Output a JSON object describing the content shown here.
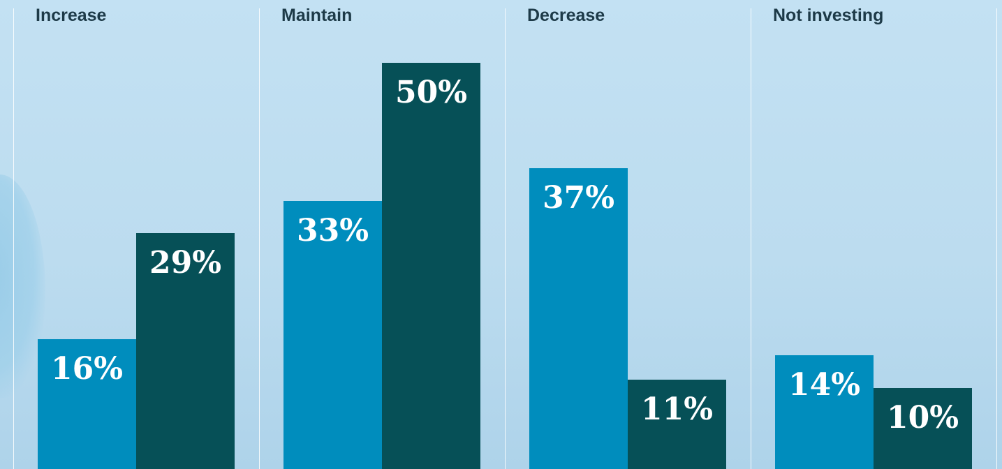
{
  "colors": {
    "series_a": "#008dbd",
    "series_b": "#065057"
  },
  "chart_data": {
    "type": "bar",
    "categories": [
      "Increase",
      "Maintain",
      "Decrease",
      "Not investing"
    ],
    "series": [
      {
        "values": [
          16,
          33,
          37,
          14
        ],
        "labels": [
          "16%",
          "33%",
          "37%",
          "14%"
        ]
      },
      {
        "values": [
          29,
          50,
          11,
          10
        ],
        "labels": [
          "29%",
          "50%",
          "11%",
          "10%"
        ]
      }
    ],
    "ylim": [
      0,
      50
    ],
    "grid": false
  }
}
